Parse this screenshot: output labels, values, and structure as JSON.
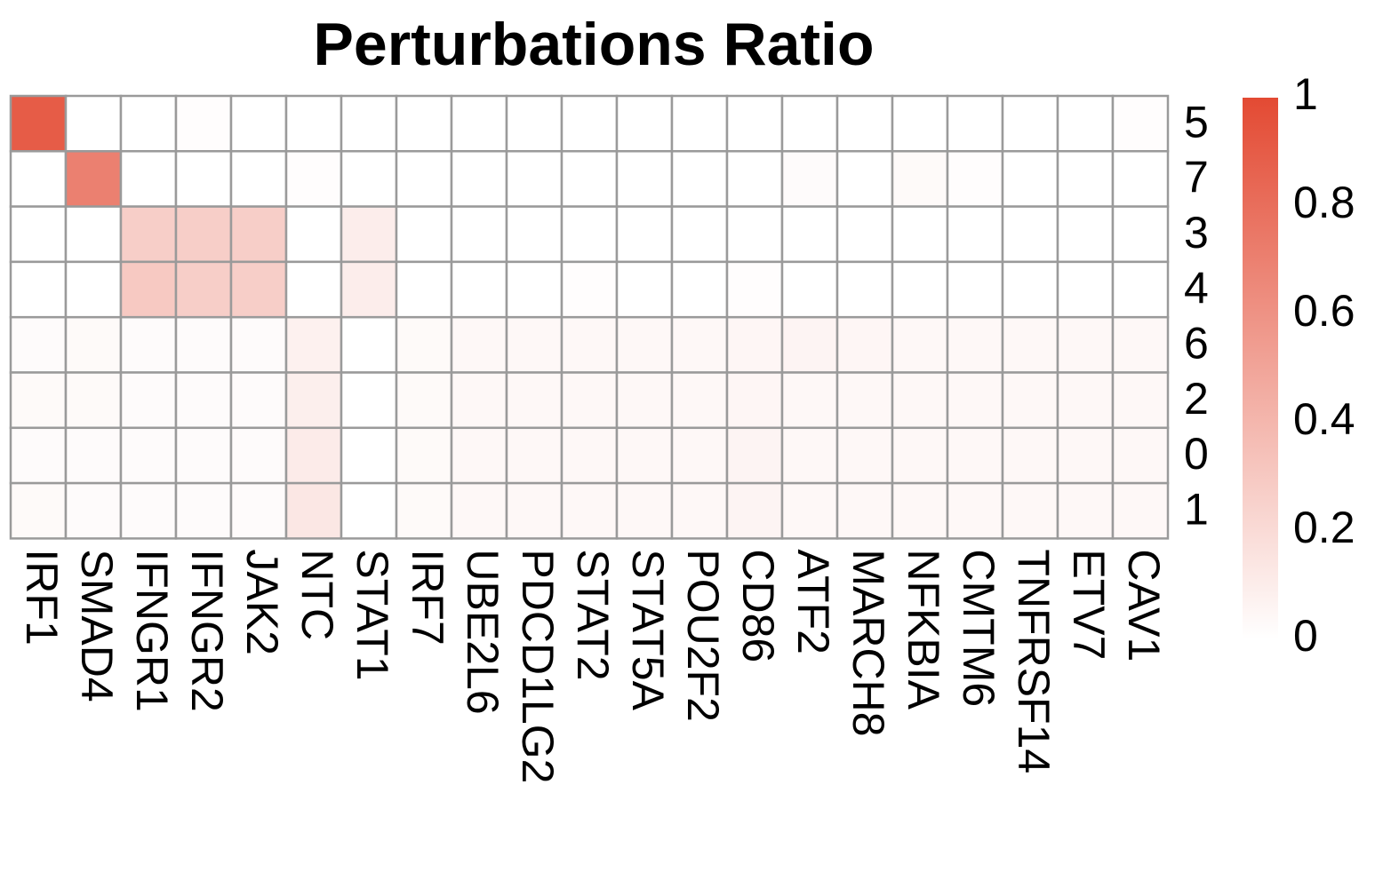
{
  "chart_data": {
    "type": "heatmap",
    "title": "Perturbations Ratio",
    "rows": [
      "5",
      "7",
      "3",
      "4",
      "6",
      "2",
      "0",
      "1"
    ],
    "columns": [
      "IRF1",
      "SMAD4",
      "IFNGR1",
      "IFNGR2",
      "JAK2",
      "NTC",
      "STAT1",
      "IRF7",
      "UBE2L6",
      "PDCD1LG2",
      "STAT2",
      "STAT5A",
      "POU2F2",
      "CD86",
      "ATF2",
      "MARCH8",
      "NFKBIA",
      "CMTM6",
      "TNFRSF14",
      "ETV7",
      "CAV1"
    ],
    "values": [
      [
        0.9,
        0.0,
        0.0,
        0.01,
        0.0,
        0.0,
        0.0,
        0.0,
        0.0,
        0.0,
        0.0,
        0.0,
        0.0,
        0.0,
        0.0,
        0.0,
        0.0,
        0.0,
        0.0,
        0.0,
        0.01
      ],
      [
        0.0,
        0.7,
        0.0,
        0.0,
        0.0,
        0.01,
        0.0,
        0.0,
        0.0,
        0.0,
        0.0,
        0.0,
        0.0,
        0.0,
        0.02,
        0.0,
        0.03,
        0.01,
        0.0,
        0.0,
        0.0
      ],
      [
        0.0,
        0.0,
        0.27,
        0.27,
        0.27,
        0.0,
        0.1,
        0.0,
        0.0,
        0.0,
        0.0,
        0.0,
        0.0,
        0.0,
        0.0,
        0.0,
        0.0,
        0.0,
        0.0,
        0.0,
        0.0
      ],
      [
        0.0,
        0.0,
        0.3,
        0.27,
        0.27,
        0.0,
        0.1,
        0.0,
        0.0,
        0.0,
        0.01,
        0.0,
        0.0,
        0.01,
        0.0,
        0.0,
        0.0,
        0.0,
        0.0,
        0.0,
        0.0
      ],
      [
        0.02,
        0.03,
        0.02,
        0.02,
        0.02,
        0.08,
        0.0,
        0.03,
        0.04,
        0.04,
        0.04,
        0.04,
        0.04,
        0.05,
        0.06,
        0.05,
        0.04,
        0.04,
        0.04,
        0.04,
        0.04
      ],
      [
        0.03,
        0.03,
        0.02,
        0.02,
        0.02,
        0.09,
        0.0,
        0.03,
        0.04,
        0.04,
        0.04,
        0.04,
        0.04,
        0.05,
        0.04,
        0.04,
        0.04,
        0.04,
        0.04,
        0.04,
        0.04
      ],
      [
        0.02,
        0.02,
        0.02,
        0.02,
        0.02,
        0.11,
        0.0,
        0.03,
        0.04,
        0.04,
        0.04,
        0.04,
        0.04,
        0.06,
        0.04,
        0.04,
        0.04,
        0.04,
        0.04,
        0.04,
        0.04
      ],
      [
        0.03,
        0.02,
        0.02,
        0.02,
        0.02,
        0.13,
        0.0,
        0.03,
        0.04,
        0.04,
        0.04,
        0.04,
        0.04,
        0.06,
        0.04,
        0.04,
        0.04,
        0.04,
        0.04,
        0.04,
        0.04
      ]
    ],
    "color_scale": {
      "low": "#ffffff",
      "high": "#e34a33",
      "range": [
        0,
        1
      ],
      "ticks": [
        "1",
        "0.8",
        "0.6",
        "0.4",
        "0.2",
        "0"
      ]
    },
    "grid_color": "#9a9a9a",
    "legend": "right"
  }
}
